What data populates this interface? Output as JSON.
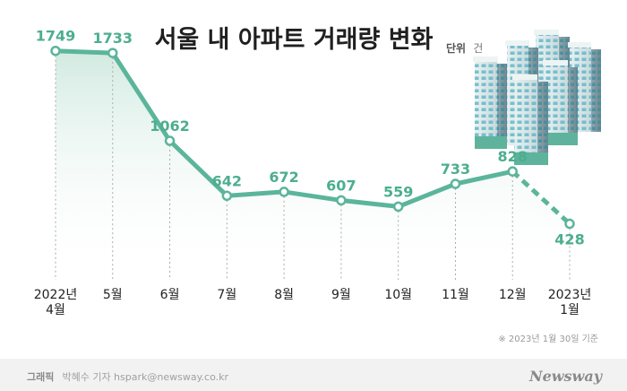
{
  "chart_data": {
    "type": "line",
    "title": "서울 내 아파트 거래량 변화",
    "unit_label": "단위",
    "unit_value": "건",
    "categories": [
      [
        "2022년",
        "4월"
      ],
      [
        "5월"
      ],
      [
        "6월"
      ],
      [
        "7월"
      ],
      [
        "8월"
      ],
      [
        "9월"
      ],
      [
        "10월"
      ],
      [
        "11월"
      ],
      [
        "12월"
      ],
      [
        "2023년",
        "1월"
      ]
    ],
    "values": [
      1749,
      1733,
      1062,
      642,
      672,
      607,
      559,
      733,
      828,
      428
    ],
    "dashed_last_segment": true,
    "ylim": [
      0,
      1850
    ],
    "grid": false,
    "legend": "none",
    "note": "※  2023년 1월 30일 기준",
    "colors": {
      "line": "#5bb59a",
      "label": "#4cae8f",
      "fill_top": "#cfe9df"
    }
  },
  "footer": {
    "credit_label": "그래픽",
    "credit_text": "박혜수 기자 hspark@newsway.co.kr",
    "brand": "Newsway"
  },
  "decoration": {
    "image": "apartment-buildings-illustration"
  }
}
